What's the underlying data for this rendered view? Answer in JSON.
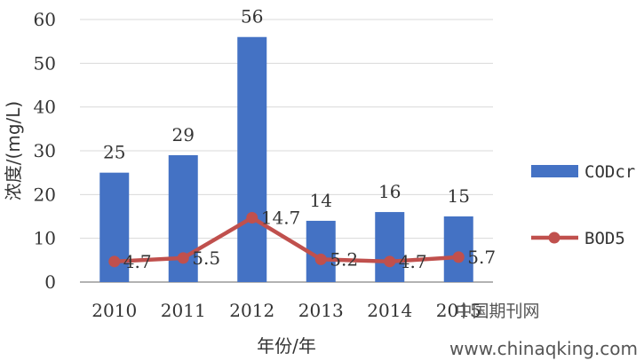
{
  "chart_data": {
    "type": "bar",
    "categories": [
      "2010",
      "2011",
      "2012",
      "2013",
      "2014",
      "2015"
    ],
    "series": [
      {
        "name": "CODcr",
        "type": "bar",
        "values": [
          25,
          29,
          56,
          14,
          16,
          15
        ],
        "color": "#4472C4",
        "labels": [
          "25",
          "29",
          "56",
          "14",
          "16",
          "15"
        ]
      },
      {
        "name": "BOD5",
        "type": "line",
        "values": [
          4.7,
          5.5,
          14.7,
          5.2,
          4.7,
          5.7
        ],
        "color": "#C0504D",
        "labels": [
          "4.7",
          "5.5",
          "14.7",
          "5.2",
          "4.7",
          "5.7"
        ]
      }
    ],
    "yticks": [
      "0",
      "10",
      "20",
      "30",
      "40",
      "50",
      "60"
    ],
    "ylim": [
      0,
      60
    ],
    "ylabel": "浓度/(mg/L)",
    "xlabel": "年份/年",
    "grid": true,
    "legend": "right"
  },
  "watermark": {
    "line1": "中国期刊网",
    "line2": "www.chinaqking.com"
  }
}
